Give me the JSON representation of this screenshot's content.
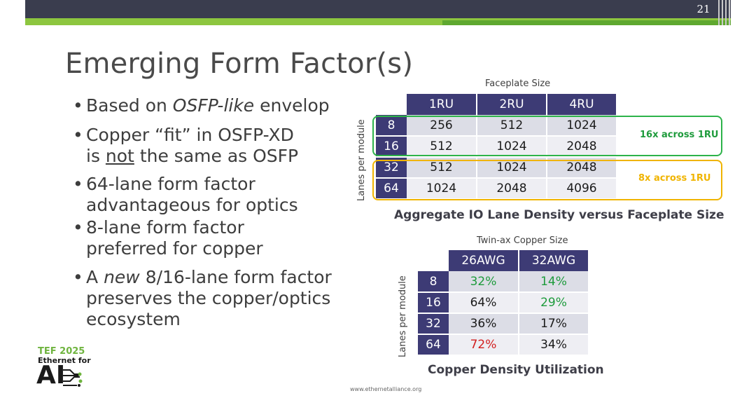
{
  "slide_number": "21",
  "title": "Emerging Form Factor(s)",
  "bullets": [
    {
      "lines": [
        [
          "Based on ",
          {
            "em": "OSFP-like"
          },
          " envelop"
        ]
      ]
    },
    {
      "lines": [
        [
          "Copper “fit” in OSFP-XD"
        ],
        [
          "is ",
          {
            "u": "not"
          },
          " the same as OSFP"
        ]
      ]
    },
    {
      "lines": [
        [
          "64-lane form factor"
        ],
        [
          "advantageous for optics"
        ]
      ]
    },
    {
      "lines": [
        [
          "8-lane form factor"
        ],
        [
          "preferred for copper"
        ]
      ]
    },
    {
      "lines": [
        [
          "A ",
          {
            "em": "new"
          },
          " 8/16-lane form factor"
        ],
        [
          "preserves the copper/optics"
        ],
        [
          "ecosystem"
        ]
      ]
    }
  ],
  "table1": {
    "column_caption": "Faceplate Size",
    "row_caption": "Lanes per module",
    "columns": [
      "1RU",
      "2RU",
      "4RU"
    ],
    "rows": [
      {
        "label": "8",
        "values": [
          "256",
          "512",
          "1024"
        ]
      },
      {
        "label": "16",
        "values": [
          "512",
          "1024",
          "2048"
        ]
      },
      {
        "label": "32",
        "values": [
          "512",
          "1024",
          "2048"
        ]
      },
      {
        "label": "64",
        "values": [
          "1024",
          "2048",
          "4096"
        ]
      }
    ],
    "note_green": "16x across 1RU",
    "note_yellow": "8x across 1RU",
    "title": "Aggregate IO Lane Density versus Faceplate Size"
  },
  "table2": {
    "column_caption": "Twin-ax Copper Size",
    "row_caption": "Lanes per module",
    "columns": [
      "26AWG",
      "32AWG"
    ],
    "rows": [
      {
        "label": "8",
        "values": [
          {
            "v": "32%",
            "c": "green"
          },
          {
            "v": "14%",
            "c": "green"
          }
        ]
      },
      {
        "label": "16",
        "values": [
          {
            "v": "64%",
            "c": ""
          },
          {
            "v": "29%",
            "c": "green"
          }
        ]
      },
      {
        "label": "32",
        "values": [
          {
            "v": "36%",
            "c": ""
          },
          {
            "v": "17%",
            "c": ""
          }
        ]
      },
      {
        "label": "64",
        "values": [
          {
            "v": "72%",
            "c": "red"
          },
          {
            "v": "34%",
            "c": ""
          }
        ]
      }
    ],
    "title": "Copper Density Utilization"
  },
  "logo": {
    "line1": "TEF 2025",
    "line2": "Ethernet for",
    "line3": "AI"
  },
  "footer_url": "www.ethernetalliance.org",
  "colors": {
    "header_bar": "#3a3d4e",
    "accent_green": "#8dc63f",
    "table_header": "#3d3b75",
    "good": "#1e9b3c",
    "bad": "#d21f1f",
    "highlight_yellow": "#f0b400"
  }
}
